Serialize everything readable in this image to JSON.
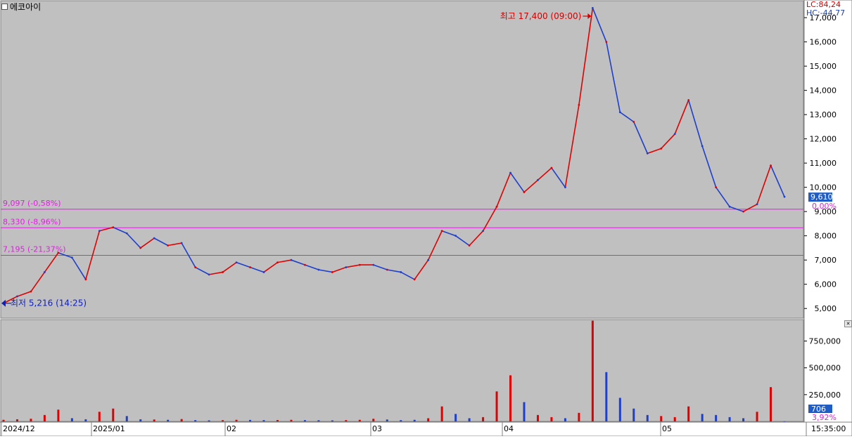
{
  "window": {
    "title": "에코아이",
    "lc_label": "LC:84,24",
    "hc_label": "HC:-44,77",
    "time_label": "15:35:00"
  },
  "colors": {
    "background": "#c0c0c0",
    "up": "#e00000",
    "down": "#1e3fcc",
    "level_line": "#e020e0",
    "current_badge": "#1f5cc8",
    "axis_bg": "#ffffff"
  },
  "annotations": {
    "high_label": "최고 17,400 (09:00)",
    "low_label": "최저 5,216 (14:25)",
    "level_1": "9,097 (-0,58%)",
    "level_2": "8,330 (-8,96%)",
    "level_3": "7,195 (-21,37%)",
    "current_price": "9,610",
    "current_pct": "0,00%",
    "current_volume": "706",
    "volume_pct": "3,92%"
  },
  "chart_data": [
    {
      "type": "line",
      "name": "price",
      "y_ticks": [
        "17,000",
        "16,000",
        "15,000",
        "14,000",
        "13,000",
        "12,000",
        "11,000",
        "10,000",
        "9,000",
        "8,000",
        "7,000",
        "6,000",
        "5,000"
      ],
      "ylim": [
        4600,
        17700
      ],
      "x_labels": [
        "2024/12",
        "2025/01",
        "02",
        "03",
        "04",
        "05"
      ],
      "levels": [
        9097,
        8330,
        7195
      ],
      "high": 17400,
      "low": 5216,
      "current": 9610,
      "series": [
        {
          "values": [
            5216,
            5500,
            5700,
            6500,
            7300,
            7100,
            6200,
            8200,
            8350,
            8100,
            7500,
            7900,
            7600,
            7700,
            6700,
            6400,
            6500,
            6900,
            6700,
            6500,
            6900,
            7000,
            6800,
            6600,
            6500,
            6700,
            6800,
            6800,
            6600,
            6500,
            6200,
            7000,
            8200,
            8000,
            7600,
            8200,
            9200,
            10600,
            9800,
            10300,
            10800,
            10000,
            13400,
            17400,
            16000,
            13100,
            12700,
            11400,
            11600,
            12200,
            13600,
            11700,
            10000,
            9200,
            9000,
            9300,
            10900,
            9610
          ]
        }
      ]
    },
    {
      "type": "bar",
      "name": "volume",
      "y_ticks": [
        "750,000",
        "500,000",
        "250,000"
      ],
      "ylim": [
        0,
        950000
      ],
      "series": [
        {
          "values": [
            15000,
            20000,
            25000,
            60000,
            110000,
            30000,
            20000,
            90000,
            120000,
            50000,
            20000,
            18000,
            15000,
            22000,
            12000,
            10000,
            12000,
            15000,
            14000,
            12000,
            13000,
            15000,
            12000,
            11000,
            10000,
            12000,
            15000,
            25000,
            18000,
            12000,
            15000,
            30000,
            140000,
            70000,
            30000,
            40000,
            280000,
            430000,
            180000,
            60000,
            40000,
            30000,
            80000,
            940000,
            460000,
            220000,
            120000,
            60000,
            50000,
            40000,
            140000,
            70000,
            60000,
            40000,
            30000,
            90000,
            320000,
            706
          ]
        }
      ]
    }
  ]
}
